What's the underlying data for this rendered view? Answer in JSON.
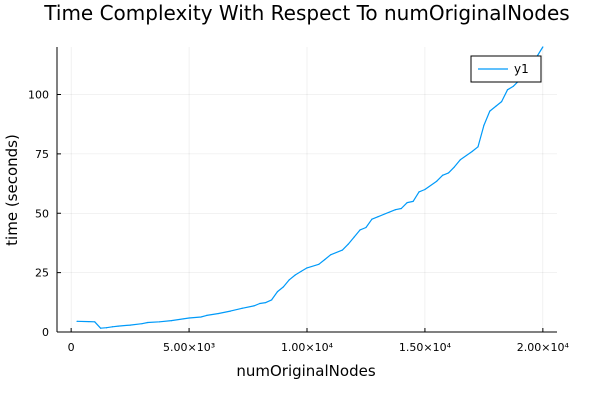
{
  "chart_data": {
    "type": "line",
    "title": "Time Complexity With Respect To numOriginalNodes",
    "xlabel": "numOriginalNodes",
    "ylabel": "time (seconds)",
    "xlim": [
      -600,
      20600
    ],
    "ylim": [
      0,
      120
    ],
    "grid": true,
    "legend_position": "top-right",
    "x_ticks": [
      {
        "value": 0,
        "label": "0"
      },
      {
        "value": 5000,
        "label": "5.00×10³"
      },
      {
        "value": 10000,
        "label": "1.00×10⁴"
      },
      {
        "value": 15000,
        "label": "1.50×10⁴"
      },
      {
        "value": 20000,
        "label": "2.00×10⁴"
      }
    ],
    "y_ticks": [
      {
        "value": 0,
        "label": "0"
      },
      {
        "value": 25,
        "label": "25"
      },
      {
        "value": 50,
        "label": "50"
      },
      {
        "value": 75,
        "label": "75"
      },
      {
        "value": 100,
        "label": "100"
      }
    ],
    "series": [
      {
        "name": "y1",
        "color": "#009af9",
        "points": [
          [
            250,
            4.5
          ],
          [
            750,
            4.4
          ],
          [
            1000,
            4.3
          ],
          [
            1250,
            1.6
          ],
          [
            1500,
            1.8
          ],
          [
            1750,
            2.2
          ],
          [
            2000,
            2.5
          ],
          [
            2500,
            2.9
          ],
          [
            3000,
            3.5
          ],
          [
            3250,
            4.0
          ],
          [
            3750,
            4.3
          ],
          [
            4250,
            4.8
          ],
          [
            4750,
            5.5
          ],
          [
            5000,
            5.9
          ],
          [
            5500,
            6.3
          ],
          [
            5750,
            7.0
          ],
          [
            6250,
            7.8
          ],
          [
            6750,
            8.8
          ],
          [
            7250,
            10.0
          ],
          [
            7750,
            11.0
          ],
          [
            8000,
            12.0
          ],
          [
            8250,
            12.4
          ],
          [
            8500,
            13.5
          ],
          [
            8750,
            17.0
          ],
          [
            9000,
            19.0
          ],
          [
            9250,
            22.0
          ],
          [
            9500,
            24.0
          ],
          [
            9750,
            25.5
          ],
          [
            10000,
            27.0
          ],
          [
            10500,
            28.5
          ],
          [
            10750,
            30.5
          ],
          [
            11000,
            32.5
          ],
          [
            11500,
            34.5
          ],
          [
            11750,
            37.0
          ],
          [
            12000,
            40.0
          ],
          [
            12250,
            43.0
          ],
          [
            12500,
            44.0
          ],
          [
            12750,
            47.5
          ],
          [
            13000,
            48.5
          ],
          [
            13500,
            50.5
          ],
          [
            13750,
            51.5
          ],
          [
            14000,
            52.0
          ],
          [
            14250,
            54.5
          ],
          [
            14500,
            55.0
          ],
          [
            14750,
            59.0
          ],
          [
            15000,
            60.0
          ],
          [
            15500,
            63.5
          ],
          [
            15750,
            66.0
          ],
          [
            16000,
            67.0
          ],
          [
            16250,
            69.5
          ],
          [
            16500,
            72.5
          ],
          [
            17000,
            76.0
          ],
          [
            17250,
            78.0
          ],
          [
            17500,
            87.0
          ],
          [
            17750,
            93.0
          ],
          [
            18000,
            95.0
          ],
          [
            18250,
            97.0
          ],
          [
            18500,
            102.0
          ],
          [
            18750,
            103.5
          ],
          [
            19000,
            106.0
          ],
          [
            19500,
            112.0
          ],
          [
            20000,
            120.0
          ]
        ]
      }
    ]
  }
}
